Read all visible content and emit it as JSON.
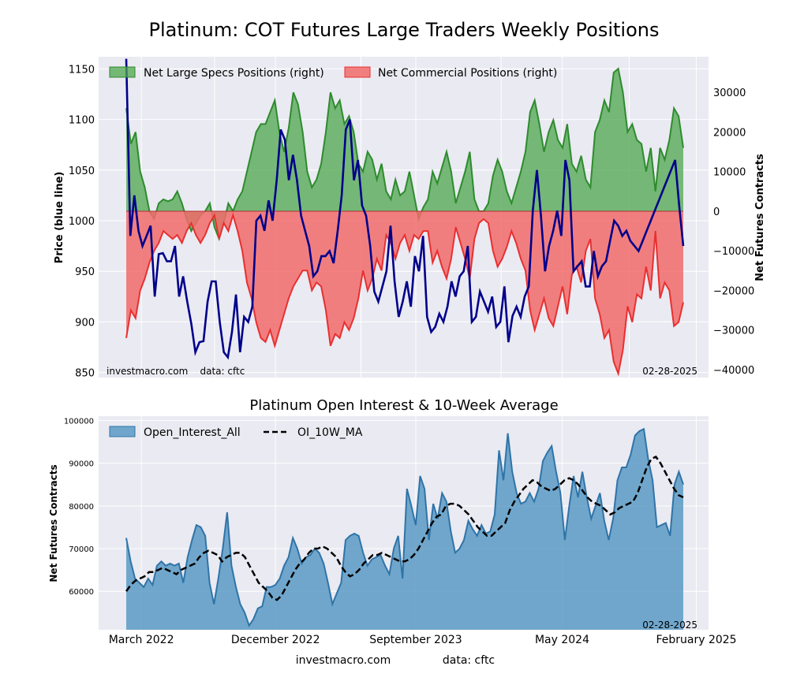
{
  "page": {
    "title": "Platinum: COT Futures Large Traders Weekly Positions",
    "footer_site": "investmacro.com",
    "footer_source": "data: cftc"
  },
  "colors": {
    "plot_bg": "#eaeaf2",
    "grid": "#ffffff",
    "price_line": "#00008b",
    "specs_fill": "#4ca64c",
    "specs_line": "#2e8b2e",
    "comm_fill": "#f26b6b",
    "comm_line": "#e83030",
    "oi_fill": "#5b9ac4",
    "oi_line": "#2f74a8",
    "ma_line": "#000000"
  },
  "chart_data": [
    {
      "type": "line",
      "title": "Platinum: COT Futures Large Traders Weekly Positions",
      "ylabel": "Price (blue line)",
      "ylabel_right": "Net Futures Contracts",
      "ylim": [
        845,
        1162
      ],
      "ylim_right": [
        -42000,
        39000
      ],
      "yticks": [
        850,
        900,
        950,
        1000,
        1050,
        1100,
        1150
      ],
      "yticks_right": [
        -40000,
        -30000,
        -20000,
        -10000,
        0,
        10000,
        20000,
        30000
      ],
      "watermark_left": "investmacro.com    data: cftc",
      "date_label": "02-28-2025",
      "legend_position": "top-left",
      "legend": [
        "Net Large Specs Positions (right)",
        "Net Commercial Positions (right)"
      ],
      "series": [
        {
          "name": "Net Large Specs Positions (right)",
          "type": "area",
          "axis": "right",
          "values": [
            26000,
            17000,
            20000,
            10000,
            6000,
            0,
            -2000,
            2000,
            3000,
            2500,
            3000,
            5000,
            2000,
            -2000,
            -5000,
            -3000,
            -1000,
            0,
            2000,
            -4000,
            -7000,
            -3000,
            2000,
            0,
            3000,
            5000,
            10000,
            15000,
            20000,
            22000,
            22000,
            25000,
            28000,
            20000,
            15000,
            21000,
            30000,
            27000,
            20000,
            10000,
            6000,
            8000,
            12000,
            20000,
            30000,
            26000,
            28000,
            22000,
            24000,
            20000,
            12000,
            10000,
            15000,
            13000,
            8000,
            12000,
            5000,
            3000,
            8000,
            4000,
            5000,
            10000,
            4000,
            -2000,
            1000,
            3000,
            10000,
            7000,
            11000,
            15000,
            10000,
            2000,
            6000,
            10000,
            15000,
            3000,
            0,
            0,
            2000,
            9000,
            13000,
            10000,
            5000,
            2000,
            6000,
            10000,
            15000,
            25000,
            28000,
            22000,
            15000,
            20000,
            23000,
            18000,
            16000,
            22000,
            12000,
            10000,
            14000,
            8000,
            6000,
            20000,
            23000,
            28000,
            25000,
            35000,
            36000,
            30000,
            20000,
            22000,
            18000,
            17000,
            10000,
            16000,
            5000,
            16000,
            13000,
            18000,
            26000,
            24000,
            16000
          ]
        },
        {
          "name": "Net Commercial Positions (right)",
          "type": "area",
          "axis": "right",
          "values": [
            -32000,
            -25000,
            -27000,
            -20000,
            -17000,
            -13000,
            -10000,
            -8000,
            -5000,
            -6000,
            -7000,
            -6000,
            -8000,
            -5000,
            -3000,
            -6000,
            -8000,
            -6000,
            -3000,
            -1000,
            -7000,
            -3000,
            -5000,
            -1000,
            -5000,
            -10000,
            -18000,
            -22000,
            -28000,
            -32000,
            -33000,
            -30000,
            -34000,
            -30000,
            -26000,
            -22000,
            -19000,
            -17000,
            -15000,
            -15000,
            -20000,
            -18000,
            -19000,
            -25000,
            -34000,
            -31000,
            -32000,
            -28000,
            -30000,
            -27000,
            -22000,
            -15000,
            -20000,
            -17000,
            -12000,
            -15000,
            -6000,
            -8000,
            -12000,
            -8000,
            -6000,
            -10000,
            -6000,
            -7000,
            -5000,
            -5000,
            -13000,
            -10000,
            -14000,
            -17000,
            -12000,
            -4000,
            -8000,
            -12000,
            -17000,
            -7000,
            -3000,
            -2000,
            -3000,
            -10000,
            -14000,
            -12000,
            -9000,
            -5000,
            -8000,
            -12000,
            -15000,
            -25000,
            -30000,
            -26000,
            -22000,
            -27000,
            -29000,
            -24000,
            -19000,
            -26000,
            -16000,
            -14000,
            -18000,
            -10000,
            -7000,
            -22000,
            -26000,
            -32000,
            -30000,
            -38000,
            -41000,
            -35000,
            -24000,
            -28000,
            -21000,
            -22000,
            -14000,
            -20000,
            -5000,
            -22000,
            -18000,
            -20000,
            -29000,
            -28000,
            -23000
          ]
        },
        {
          "name": "",
          "type": "line",
          "axis": "left",
          "values": [
            1160,
            985,
            1025,
            990,
            975,
            985,
            995,
            925,
            967,
            968,
            960,
            960,
            975,
            925,
            945,
            920,
            898,
            870,
            880,
            881,
            920,
            940,
            940,
            900,
            870,
            865,
            890,
            927,
            870,
            905,
            900,
            915,
            1000,
            1005,
            990,
            1020,
            1000,
            1040,
            1090,
            1080,
            1040,
            1065,
            1040,
            1005,
            990,
            975,
            945,
            950,
            965,
            965,
            970,
            958,
            990,
            1025,
            1090,
            1100,
            1040,
            1060,
            1015,
            1005,
            975,
            930,
            920,
            935,
            950,
            995,
            940,
            905,
            920,
            940,
            915,
            965,
            950,
            985,
            905,
            890,
            895,
            908,
            900,
            915,
            940,
            925,
            945,
            950,
            975,
            900,
            905,
            930,
            920,
            910,
            925,
            895,
            900,
            935,
            880,
            906,
            915,
            905,
            925,
            935,
            1010,
            1050,
            1005,
            950,
            975,
            990,
            1010,
            985,
            1060,
            1040,
            950,
            955,
            960,
            935,
            935,
            970,
            945,
            955,
            960,
            980,
            1000,
            995,
            985,
            990,
            980,
            975,
            970,
            980,
            990,
            1000,
            1010,
            1020,
            1030,
            1040,
            1050,
            1060,
            1015,
            975
          ]
        }
      ]
    },
    {
      "type": "area",
      "title": "Platinum Open Interest & 10-Week Average",
      "ylabel": "Net Futures Contracts",
      "ylim": [
        51000,
        101000
      ],
      "yticks": [
        60000,
        70000,
        80000,
        90000,
        100000
      ],
      "x_tick_labels": [
        "March 2022",
        "December 2022",
        "September 2023",
        "May 2024",
        "February 2025"
      ],
      "date_label": "02-28-2025",
      "legend_position": "top-left",
      "legend": [
        "Open_Interest_All",
        "OI_10W_MA"
      ],
      "series": [
        {
          "name": "Open_Interest_All",
          "type": "area",
          "values": [
            72500,
            67000,
            63000,
            62000,
            61000,
            63000,
            61500,
            66000,
            67000,
            66000,
            66500,
            66000,
            66500,
            62000,
            68000,
            72000,
            75500,
            75000,
            73000,
            62000,
            57000,
            63000,
            70000,
            78500,
            66000,
            61000,
            57000,
            55000,
            52000,
            53500,
            56000,
            56500,
            61000,
            61000,
            61500,
            63000,
            66000,
            68000,
            72500,
            70000,
            66500,
            68000,
            68500,
            70000,
            69000,
            66500,
            62000,
            57000,
            59500,
            62000,
            72000,
            73000,
            73500,
            73000,
            69000,
            66000,
            67500,
            68000,
            68500,
            66000,
            64000,
            70000,
            73000,
            63000,
            84000,
            80000,
            75500,
            87000,
            84000,
            72000,
            80500,
            77000,
            83000,
            81000,
            74000,
            69000,
            70000,
            72000,
            76500,
            74500,
            73000,
            75500,
            73500,
            74000,
            78000,
            93000,
            86000,
            97000,
            88000,
            83000,
            80500,
            81000,
            83000,
            81000,
            84000,
            90500,
            92500,
            94000,
            88000,
            83000,
            72000,
            80000,
            87000,
            82000,
            88000,
            82000,
            77000,
            80000,
            83000,
            76500,
            72000,
            77000,
            86000,
            89000,
            89000,
            92000,
            96500,
            97500,
            98000,
            91000,
            86000,
            75000,
            75500,
            76000,
            73000,
            85000,
            88000,
            85000
          ]
        },
        {
          "name": "OI_10W_MA",
          "type": "line",
          "values": [
            60000,
            61500,
            62500,
            63000,
            63500,
            64500,
            64500,
            65000,
            65500,
            65000,
            64500,
            64000,
            65000,
            65500,
            66000,
            66500,
            68000,
            69000,
            69500,
            69000,
            68500,
            67000,
            68000,
            68500,
            69000,
            69000,
            68000,
            66000,
            64000,
            62000,
            61000,
            60000,
            58500,
            58000,
            59000,
            61000,
            63000,
            65000,
            66500,
            67500,
            69000,
            70000,
            70000,
            70500,
            70000,
            69000,
            68000,
            66000,
            64500,
            63500,
            64000,
            65000,
            66500,
            67500,
            68500,
            68500,
            69000,
            68500,
            68000,
            67500,
            67000,
            67000,
            67500,
            68500,
            70000,
            72000,
            74000,
            76000,
            77500,
            78000,
            80000,
            80500,
            80500,
            80000,
            79000,
            78000,
            76500,
            75000,
            74000,
            73000,
            73000,
            74000,
            75000,
            76000,
            79000,
            81000,
            82500,
            84000,
            85000,
            86000,
            85500,
            84500,
            84000,
            83500,
            84000,
            85000,
            86000,
            86500,
            86000,
            85000,
            83500,
            82000,
            81000,
            80500,
            80000,
            79000,
            78000,
            78500,
            79500,
            80000,
            80500,
            81000,
            83000,
            86000,
            89000,
            91000,
            91500,
            90000,
            88000,
            86000,
            84000,
            82500,
            82000
          ]
        }
      ]
    }
  ]
}
